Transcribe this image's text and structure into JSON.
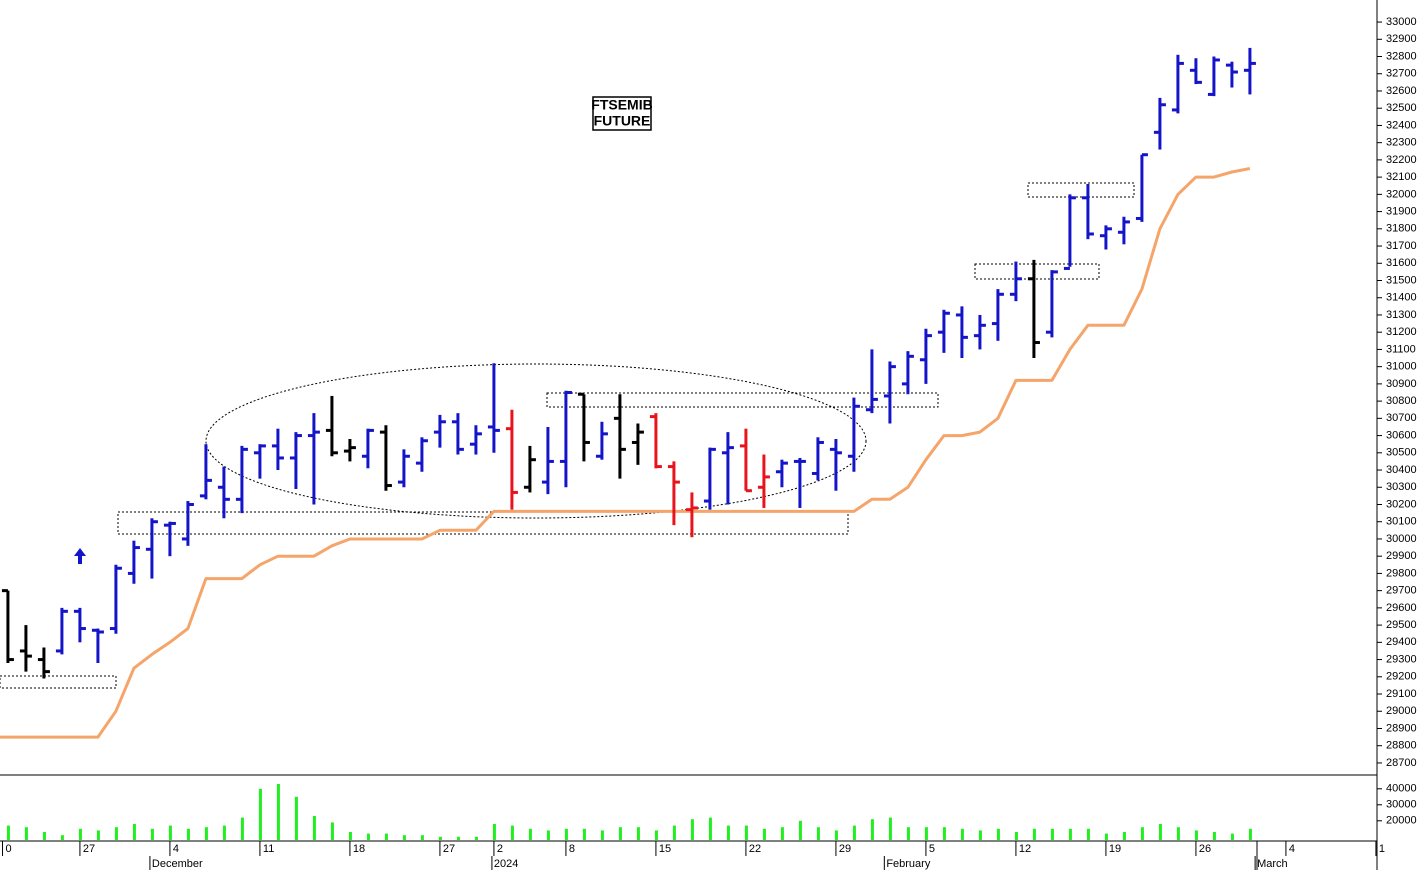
{
  "chart_data": {
    "type": "ohlc",
    "annotations": [
      "FTSEMIB",
      "FUTURE"
    ],
    "xlim": [
      -0.44,
      76.06
    ],
    "ylim": [
      28630,
      33128
    ],
    "yticks": [
      28700,
      28800,
      28900,
      29000,
      29100,
      29200,
      29300,
      29400,
      29500,
      29600,
      29700,
      29800,
      29900,
      30000,
      30100,
      30200,
      30300,
      30400,
      30500,
      30600,
      30700,
      30800,
      30900,
      31000,
      31100,
      31200,
      31300,
      31400,
      31500,
      31600,
      31700,
      31800,
      31900,
      32000,
      32100,
      32200,
      32300,
      32400,
      32500,
      32600,
      32700,
      32800,
      32900,
      33000
    ],
    "xticks": [
      {
        "value": -0.3,
        "label": "0"
      },
      {
        "value": 4,
        "label": "27"
      },
      {
        "value": 9,
        "label": "4"
      },
      {
        "value": 14,
        "label": "11"
      },
      {
        "value": 19,
        "label": "18"
      },
      {
        "value": 24,
        "label": "27"
      },
      {
        "value": 27,
        "label": "2"
      },
      {
        "value": 31,
        "label": "8"
      },
      {
        "value": 36,
        "label": "15"
      },
      {
        "value": 41,
        "label": "22"
      },
      {
        "value": 46,
        "label": "29"
      },
      {
        "value": 51,
        "label": "5"
      },
      {
        "value": 56,
        "label": "12"
      },
      {
        "value": 61,
        "label": "19"
      },
      {
        "value": 66,
        "label": "26"
      },
      {
        "value": 71,
        "label": "4"
      },
      {
        "value": 76,
        "label": "1"
      }
    ],
    "xmonths": [
      {
        "value": 8,
        "label": "December"
      },
      {
        "value": 27,
        "label": "2024"
      },
      {
        "value": 48.8,
        "label": "February"
      },
      {
        "value": 69.4,
        "label": "March"
      }
    ],
    "open": [
      29700,
      29350,
      29300,
      29350,
      29580,
      29470,
      29480,
      29800,
      29940,
      30080,
      30000,
      30250,
      30300,
      30230,
      30500,
      30540,
      30470,
      30600,
      30630,
      30510,
      30480,
      30620,
      30330,
      30440,
      30620,
      30680,
      30550,
      30650,
      30640,
      30300,
      30330,
      30450,
      30840,
      30480,
      30700,
      30560,
      30710,
      30420,
      30170,
      30220,
      30500,
      30540,
      30300,
      30390,
      30450,
      30380,
      30520,
      30480,
      30750,
      30830,
      30900,
      31040,
      31200,
      31300,
      31180,
      31250,
      31420,
      31510,
      31200,
      31570,
      31980,
      31760,
      31780,
      31860,
      32360,
      32490,
      32720,
      32580,
      32750,
      32720
    ],
    "high": [
      29700,
      29500,
      29370,
      29600,
      29600,
      29480,
      29850,
      29990,
      30120,
      30100,
      30220,
      30550,
      30420,
      30540,
      30550,
      30640,
      30620,
      30730,
      30830,
      30580,
      30640,
      30660,
      30520,
      30590,
      30720,
      30730,
      30660,
      31020,
      30750,
      30540,
      30650,
      30860,
      30840,
      30680,
      30840,
      30670,
      30730,
      30450,
      30270,
      30530,
      30620,
      30640,
      30490,
      30460,
      30470,
      30590,
      30580,
      30820,
      31100,
      31030,
      31090,
      31220,
      31330,
      31350,
      31300,
      31450,
      31610,
      31620,
      31560,
      32000,
      32060,
      31820,
      31870,
      32230,
      32560,
      32810,
      32790,
      32800,
      32770,
      32850
    ],
    "low": [
      29280,
      29230,
      29190,
      29330,
      29400,
      29280,
      29450,
      29740,
      29770,
      29900,
      29960,
      30230,
      30120,
      30150,
      30350,
      30400,
      30290,
      30200,
      30480,
      30450,
      30410,
      30280,
      30300,
      30390,
      30530,
      30490,
      30490,
      30500,
      30170,
      30270,
      30260,
      30300,
      30450,
      30460,
      30350,
      30430,
      30410,
      30080,
      30010,
      30170,
      30200,
      30280,
      30180,
      30300,
      30180,
      30340,
      30280,
      30390,
      30730,
      30670,
      30840,
      30900,
      31080,
      31050,
      31100,
      31150,
      31380,
      31050,
      31170,
      31580,
      31740,
      31680,
      31710,
      31840,
      32260,
      32470,
      32640,
      32570,
      32620,
      32580
    ],
    "close": [
      29300,
      29320,
      29230,
      29580,
      29480,
      29460,
      29830,
      29950,
      30100,
      30090,
      30200,
      30340,
      30230,
      30520,
      30540,
      30470,
      30600,
      30620,
      30500,
      30530,
      30630,
      30310,
      30480,
      30570,
      30680,
      30520,
      30610,
      30630,
      30270,
      30460,
      30450,
      30850,
      30560,
      30610,
      30520,
      30620,
      30420,
      30330,
      30180,
      30520,
      30530,
      30280,
      30360,
      30440,
      30450,
      30560,
      30500,
      30770,
      30810,
      31000,
      31060,
      31180,
      31310,
      31170,
      31240,
      31420,
      31510,
      31140,
      31550,
      31980,
      31770,
      31800,
      31840,
      32230,
      32520,
      32760,
      32650,
      32780,
      32710,
      32760
    ],
    "bar_colors": [
      "#000000",
      "#000000",
      "#000000",
      "#1414c8",
      "#1414c8",
      "#1414c8",
      "#1414c8",
      "#1414c8",
      "#1414c8",
      "#1414c8",
      "#1414c8",
      "#1414c8",
      "#1414c8",
      "#1414c8",
      "#1414c8",
      "#1414c8",
      "#1414c8",
      "#1414c8",
      "#000000",
      "#000000",
      "#1414c8",
      "#000000",
      "#1414c8",
      "#1414c8",
      "#1414c8",
      "#1414c8",
      "#1414c8",
      "#1414c8",
      "#e8141c",
      "#000000",
      "#1414c8",
      "#1414c8",
      "#000000",
      "#1414c8",
      "#000000",
      "#000000",
      "#e8141c",
      "#e8141c",
      "#e8141c",
      "#1414c8",
      "#1414c8",
      "#e8141c",
      "#e8141c",
      "#1414c8",
      "#1414c8",
      "#1414c8",
      "#1414c8",
      "#1414c8",
      "#1414c8",
      "#1414c8",
      "#1414c8",
      "#1414c8",
      "#1414c8",
      "#1414c8",
      "#1414c8",
      "#1414c8",
      "#1414c8",
      "#000000",
      "#1414c8",
      "#1414c8",
      "#1414c8",
      "#1414c8",
      "#1414c8",
      "#1414c8",
      "#1414c8",
      "#1414c8",
      "#1414c8",
      "#1414c8",
      "#1414c8",
      "#1414c8"
    ],
    "line": {
      "color": "#f5a56a",
      "values": [
        28850,
        28850,
        28850,
        28850,
        28850,
        28850,
        29000,
        29250,
        29330,
        29400,
        29480,
        29770,
        29770,
        29770,
        29850,
        29900,
        29900,
        29900,
        29960,
        30000,
        30000,
        30000,
        30000,
        30000,
        30050,
        30050,
        30050,
        30160,
        30160,
        30160,
        30160,
        30160,
        30160,
        30160,
        30160,
        30160,
        30160,
        30160,
        30160,
        30160,
        30160,
        30160,
        30160,
        30160,
        30160,
        30160,
        30160,
        30160,
        30230,
        30230,
        30300,
        30460,
        30600,
        30600,
        30620,
        30700,
        30920,
        30920,
        30920,
        31100,
        31240,
        31240,
        31240,
        31450,
        31800,
        32000,
        32100,
        32100,
        32130,
        32150
      ]
    },
    "volume": {
      "color": "#22ee22",
      "ylim": [
        8000,
        48000
      ],
      "yticks": [
        20000,
        30000,
        40000
      ],
      "values": [
        17000,
        16000,
        13000,
        11000,
        15000,
        14000,
        16000,
        18000,
        15000,
        17000,
        15000,
        16000,
        17000,
        22000,
        40000,
        43000,
        35000,
        23000,
        19000,
        13000,
        12000,
        12000,
        11000,
        11000,
        10000,
        10000,
        10000,
        18000,
        17000,
        15000,
        14000,
        15000,
        15000,
        14000,
        16000,
        16000,
        14000,
        17000,
        21000,
        22000,
        17000,
        17000,
        15000,
        16000,
        20000,
        16000,
        14000,
        17000,
        21000,
        22000,
        16000,
        16000,
        16000,
        15000,
        14000,
        15000,
        13000,
        15000,
        15000,
        15000,
        15000,
        12000,
        13000,
        16000,
        18000,
        16000,
        14000,
        13000,
        12000,
        15000
      ]
    }
  }
}
